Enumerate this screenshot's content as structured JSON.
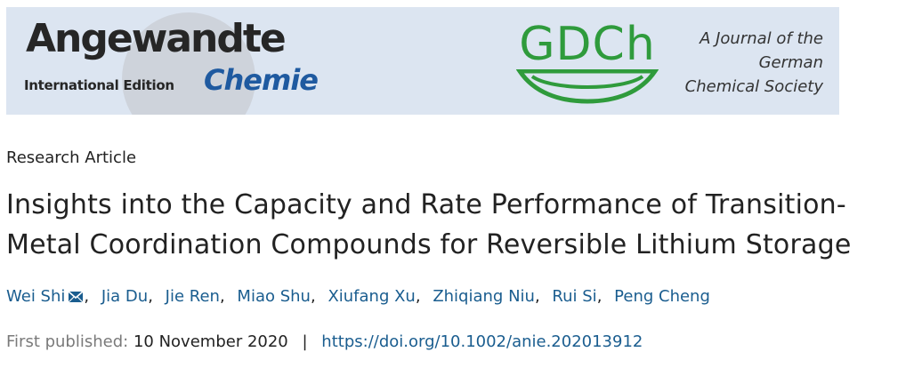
{
  "banner": {
    "logo_main": "Angewandte",
    "logo_international": "International Edition",
    "logo_chemie": "Chemie",
    "gdch_logo": "GDCh",
    "society_lines": [
      "A Journal of the",
      "German",
      "Chemical Society"
    ]
  },
  "article": {
    "type": "Research Article",
    "title_lines": [
      "Insights into the Capacity and Rate Performance of Transition-",
      "Metal Coordination Compounds for Reversible Lithium Storage"
    ],
    "authors": [
      "Wei Shi",
      "Jia Du",
      "Jie Ren",
      "Miao Shu",
      "Xiufang Xu",
      "Zhiqiang Niu",
      "Rui Si",
      "Peng Cheng"
    ],
    "author_separator": ",",
    "first_published_label": "First published:",
    "first_published_date": "10 November 2020",
    "meta_separator": "|",
    "doi_link": "https://doi.org/10.1002/anie.202013912"
  },
  "icons": {
    "corresponding_author": "mail-icon",
    "gdch_emblem": "gdch-arc-logo"
  },
  "colors": {
    "link": "#1a5d8f",
    "banner_bg": "#dce5f1",
    "chemie": "#1f5aa0",
    "gdch_green": "#2f9b3c"
  }
}
